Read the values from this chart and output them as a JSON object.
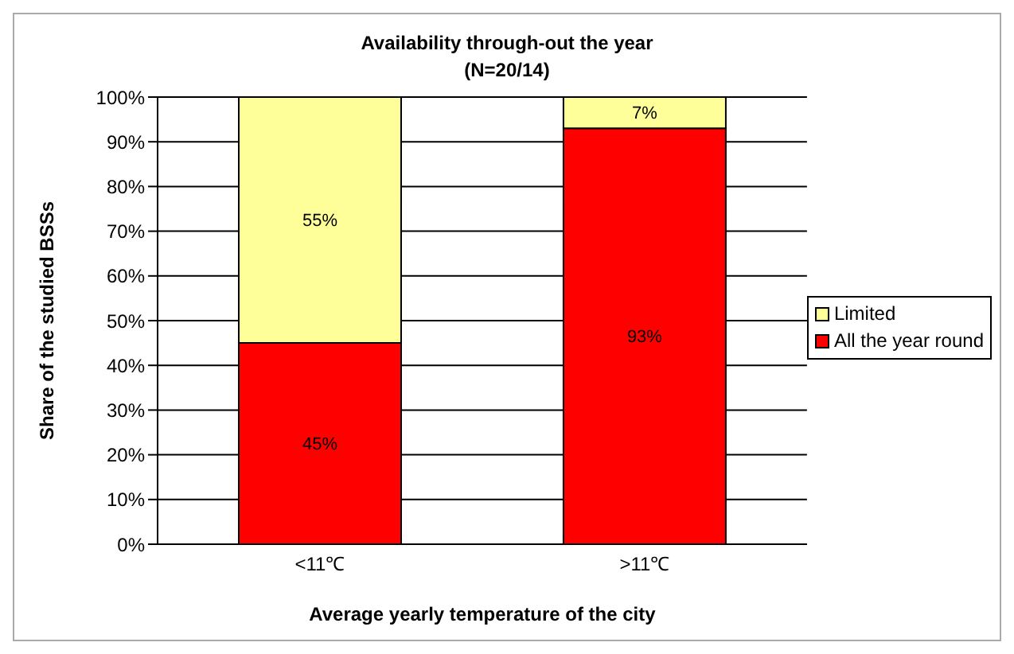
{
  "chart_data": {
    "type": "bar",
    "title": "Availability through-out the year",
    "subtitle": "(N=20/14)",
    "xlabel": "Average yearly temperature of the city",
    "ylabel": "Share of the studied BSSs",
    "categories": [
      "<11℃",
      ">11℃"
    ],
    "stacked": true,
    "series": [
      {
        "name": "All the year round",
        "color": "#ff0000",
        "values": [
          45,
          93
        ],
        "value_labels": [
          "45%",
          "93%"
        ]
      },
      {
        "name": "Limited",
        "color": "#ffff99",
        "values": [
          55,
          7
        ],
        "value_labels": [
          "55%",
          "7%"
        ]
      }
    ],
    "ylim": [
      0,
      100
    ],
    "yticks": [
      {
        "value": 0,
        "label": "0%"
      },
      {
        "value": 10,
        "label": "10%"
      },
      {
        "value": 20,
        "label": "20%"
      },
      {
        "value": 30,
        "label": "30%"
      },
      {
        "value": 40,
        "label": "40%"
      },
      {
        "value": 50,
        "label": "50%"
      },
      {
        "value": 60,
        "label": "60%"
      },
      {
        "value": 70,
        "label": "70%"
      },
      {
        "value": 80,
        "label": "80%"
      },
      {
        "value": 90,
        "label": "90%"
      },
      {
        "value": 100,
        "label": "100%"
      }
    ],
    "grid": "y",
    "legend": "right"
  }
}
